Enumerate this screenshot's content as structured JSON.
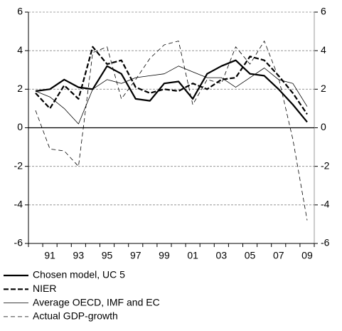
{
  "chart_data": {
    "type": "line",
    "categories": [
      null,
      "91",
      null,
      "93",
      null,
      "95",
      null,
      "97",
      null,
      "99",
      null,
      "01",
      null,
      "03",
      null,
      "05",
      null,
      "07",
      null,
      "09"
    ],
    "series": [
      {
        "name": "Chosen model, UC 5",
        "color": "#000000",
        "width": 2.2,
        "dashed": false,
        "values": [
          1.9,
          2.0,
          2.5,
          2.1,
          2.0,
          3.2,
          2.8,
          1.5,
          1.4,
          2.3,
          2.4,
          1.5,
          2.8,
          3.2,
          3.5,
          2.8,
          2.7,
          2.0,
          1.2,
          0.3
        ]
      },
      {
        "name": "NIER",
        "color": "#000000",
        "width": 2.2,
        "dashed": true,
        "values": [
          1.8,
          1.0,
          2.2,
          1.5,
          4.2,
          3.3,
          3.5,
          2.1,
          1.8,
          2.0,
          1.9,
          2.3,
          2.0,
          2.5,
          2.6,
          3.7,
          3.5,
          2.7,
          1.8,
          0.7
        ]
      },
      {
        "name": "Average OECD, IMF and EC",
        "color": "#000000",
        "width": 0.8,
        "dashed": false,
        "values": [
          1.9,
          1.6,
          1.0,
          0.2,
          2.0,
          2.5,
          2.3,
          2.6,
          2.7,
          2.8,
          3.2,
          2.9,
          2.6,
          2.6,
          2.1,
          2.6,
          3.1,
          2.5,
          2.3,
          1.1
        ]
      },
      {
        "name": "Actual GDP-growth",
        "color": "#000000",
        "width": 0.8,
        "dashed": true,
        "values": [
          0.9,
          -1.1,
          -1.2,
          -2.0,
          3.9,
          4.2,
          1.5,
          2.5,
          3.6,
          4.3,
          4.5,
          1.2,
          2.5,
          2.3,
          4.2,
          3.3,
          4.5,
          2.6,
          -0.6,
          -4.8
        ]
      }
    ],
    "ylim": [
      -6,
      6
    ],
    "yticks": [
      -6,
      -4,
      -2,
      0,
      2,
      4,
      6
    ],
    "y2lim": [
      -6,
      6
    ],
    "y2ticks": [
      -6,
      -4,
      -2,
      0,
      2,
      4,
      6
    ],
    "grid": true
  }
}
